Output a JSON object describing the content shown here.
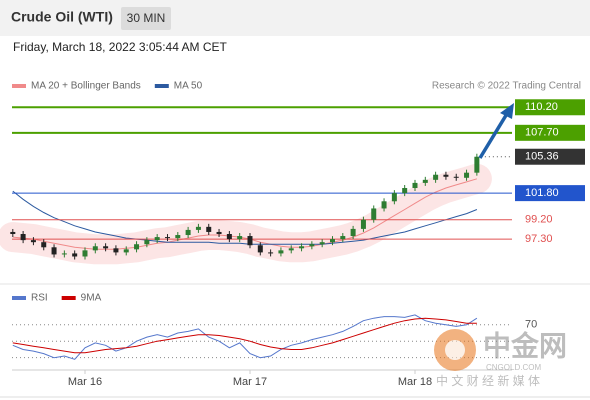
{
  "header": {
    "title": "Crude Oil (WTI)",
    "timeframe": "30 MIN",
    "timestamp": "Friday, March 18, 2022 3:05:44 AM CET"
  },
  "watermark": {
    "brand": "中金网",
    "site": "CNGOLD.COM",
    "slogan": "中 文 财 经 新 媒 体"
  },
  "chart_data": [
    {
      "type": "candlestick",
      "credit": "Research © 2022 Trading Central",
      "up_color": "#2e7d32",
      "down_color": "#222222",
      "open": [
        98.0,
        97.8,
        97.2,
        97.0,
        96.5,
        95.8,
        95.9,
        95.6,
        96.2,
        96.6,
        96.4,
        96.0,
        96.3,
        96.8,
        97.2,
        97.5,
        97.4,
        97.7,
        98.2,
        98.5,
        98.0,
        97.8,
        97.3,
        97.6,
        96.7,
        96.0,
        95.9,
        96.2,
        96.4,
        96.6,
        96.8,
        97.0,
        97.3,
        97.6,
        98.3,
        99.2,
        100.3,
        101.0,
        101.8,
        102.3,
        102.8,
        103.1,
        103.6,
        103.4,
        103.3,
        103.8
      ],
      "close": [
        97.8,
        97.2,
        97.0,
        96.5,
        95.8,
        95.9,
        95.6,
        96.2,
        96.6,
        96.4,
        96.0,
        96.3,
        96.8,
        97.2,
        97.5,
        97.4,
        97.7,
        98.2,
        98.5,
        98.0,
        97.8,
        97.3,
        97.6,
        96.7,
        96.0,
        95.9,
        96.2,
        96.4,
        96.6,
        96.8,
        97.0,
        97.3,
        97.6,
        98.3,
        99.2,
        100.3,
        101.0,
        101.8,
        102.3,
        102.8,
        103.1,
        103.6,
        103.4,
        103.3,
        103.8,
        105.36
      ],
      "series": [
        {
          "name": "MA 20 + Bollinger Bands",
          "color": "#f08a8a",
          "values": [
            97.5,
            97.4,
            97.3,
            97.1,
            96.9,
            96.7,
            96.5,
            96.4,
            96.3,
            96.3,
            96.3,
            96.4,
            96.5,
            96.7,
            96.9,
            97.0,
            97.2,
            97.4,
            97.6,
            97.7,
            97.7,
            97.6,
            97.5,
            97.3,
            97.0,
            96.8,
            96.6,
            96.5,
            96.5,
            96.6,
            96.8,
            97.0,
            97.2,
            97.5,
            97.9,
            98.4,
            99.0,
            99.6,
            100.2,
            100.8,
            101.4,
            101.9,
            102.3,
            102.6,
            102.9,
            103.2
          ]
        },
        {
          "name": "MA 50",
          "color": "#2c5aa0",
          "values": [
            102.0,
            101.2,
            100.5,
            99.9,
            99.4,
            99.0,
            98.6,
            98.3,
            98.0,
            97.8,
            97.6,
            97.4,
            97.3,
            97.2,
            97.1,
            97.0,
            97.0,
            97.0,
            97.0,
            97.0,
            96.9,
            96.9,
            96.9,
            96.8,
            96.8,
            96.8,
            96.8,
            96.8,
            96.8,
            96.8,
            96.8,
            96.9,
            97.0,
            97.1,
            97.2,
            97.4,
            97.6,
            97.8,
            98.0,
            98.3,
            98.6,
            98.9,
            99.2,
            99.5,
            99.8,
            100.2
          ]
        }
      ],
      "ylim": [
        93.3,
        111.4
      ],
      "levels": [
        {
          "value": 110.2,
          "label": "110.20",
          "color": "#4ca000",
          "boxed": true
        },
        {
          "value": 107.7,
          "label": "107.70",
          "color": "#4ca000",
          "boxed": true
        },
        {
          "value": 101.8,
          "label": "101.80",
          "color": "#2255cc",
          "boxed": true
        },
        {
          "value": 99.2,
          "label": "99.20",
          "color": "#e05050",
          "boxed": false
        },
        {
          "value": 97.3,
          "label": "97.30",
          "color": "#e05050",
          "boxed": false
        }
      ],
      "last_price": {
        "value": 105.36,
        "label": "105.36",
        "color": "#333333"
      }
    },
    {
      "type": "line",
      "categories": [
        null,
        null,
        null,
        null,
        null,
        null,
        null,
        "Mar 16",
        null,
        null,
        null,
        null,
        null,
        null,
        null,
        null,
        null,
        null,
        null,
        null,
        null,
        null,
        null,
        "Mar 17",
        null,
        null,
        null,
        null,
        null,
        null,
        null,
        null,
        null,
        null,
        null,
        null,
        null,
        null,
        null,
        "Mar 18",
        null,
        null,
        null,
        null,
        null,
        null
      ],
      "series": [
        {
          "name": "RSI",
          "color": "#5577cc",
          "values": [
            45,
            40,
            38,
            35,
            30,
            32,
            28,
            42,
            48,
            45,
            38,
            42,
            50,
            55,
            58,
            55,
            60,
            62,
            65,
            55,
            50,
            42,
            48,
            35,
            30,
            32,
            40,
            45,
            48,
            52,
            55,
            58,
            62,
            68,
            75,
            78,
            80,
            80,
            79,
            82,
            75,
            72,
            70,
            68,
            70,
            78
          ]
        },
        {
          "name": "9MA",
          "color": "#cc0000",
          "values": [
            48,
            46,
            44,
            42,
            40,
            38,
            36,
            36,
            38,
            40,
            41,
            42,
            44,
            47,
            50,
            52,
            54,
            56,
            58,
            58,
            57,
            55,
            53,
            50,
            46,
            43,
            41,
            40,
            40,
            42,
            45,
            48,
            52,
            56,
            60,
            64,
            68,
            72,
            75,
            77,
            78,
            77,
            76,
            74,
            72,
            72
          ]
        }
      ],
      "ylim": [
        15,
        88
      ],
      "yticks": [
        70
      ],
      "levels": [
        50,
        30
      ]
    }
  ]
}
